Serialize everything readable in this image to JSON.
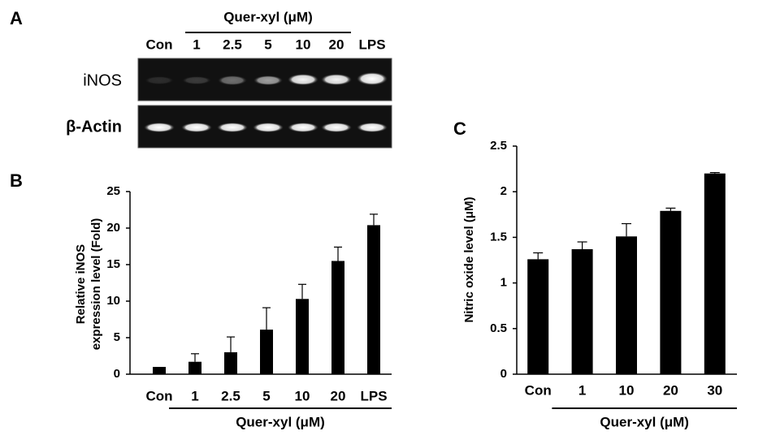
{
  "gel": {
    "panel_label": "A",
    "group_label": "Quer-xyl (μM)",
    "lanes": [
      "Con",
      "1",
      "2.5",
      "5",
      "10",
      "20",
      "LPS"
    ],
    "rows": [
      "iNOS",
      "β-Actin"
    ]
  },
  "chart_data": [
    {
      "type": "bar",
      "panel_label": "B",
      "ylabel": [
        "Relative iNOS",
        "expression level (Fold)"
      ],
      "categories": [
        "Con",
        "1",
        "2.5",
        "5",
        "10",
        "20",
        "LPS"
      ],
      "values": [
        1,
        1.7,
        3.0,
        6.1,
        10.3,
        15.5,
        20.4
      ],
      "errors": [
        0,
        1.1,
        2.1,
        3.0,
        2.0,
        1.9,
        1.5
      ],
      "group_label": "Quer-xyl (μM)",
      "color": "#000000",
      "ylim": [
        0,
        25
      ],
      "yticks": [
        0,
        5,
        10,
        15,
        20,
        25
      ]
    },
    {
      "type": "bar",
      "panel_label": "C",
      "ylabel": [
        "Nitric oxide level (μM)"
      ],
      "categories": [
        "Con",
        "1",
        "10",
        "20",
        "30"
      ],
      "values": [
        1.26,
        1.37,
        1.51,
        1.79,
        2.2
      ],
      "errors": [
        0.07,
        0.08,
        0.14,
        0.03,
        0.01
      ],
      "group_label": "Quer-xyl (μM)",
      "color": "#000000",
      "ylim": [
        0,
        2.5
      ],
      "yticks": [
        0,
        0.5,
        1,
        1.5,
        2,
        2.5
      ]
    }
  ]
}
